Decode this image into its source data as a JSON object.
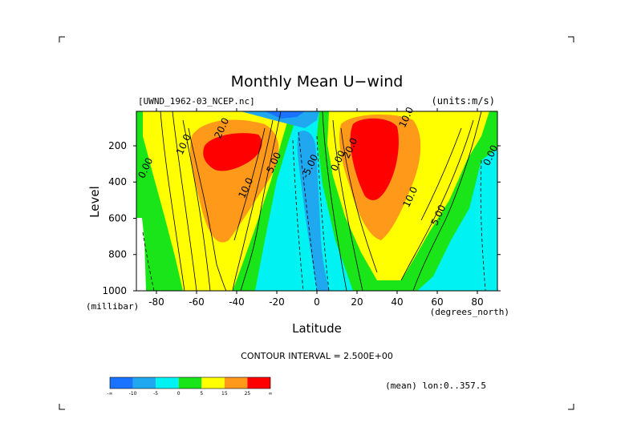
{
  "chart_data": {
    "type": "heatmap",
    "title": "Monthly Mean U−wind",
    "dataset_label": "[UWND_1962-03_NCEP.nc]",
    "units_label": "(units:m/s)",
    "xlabel": "Latitude",
    "ylabel": "Level",
    "x_unit_label": "(degrees_north)",
    "y_unit_label": "(millibar)",
    "x_range": [
      -90,
      90
    ],
    "y_range": [
      1000,
      10
    ],
    "x_ticks": [
      "-80",
      "-60",
      "-40",
      "-20",
      "0",
      "20",
      "40",
      "60",
      "80"
    ],
    "x_tick_values": [
      -80,
      -60,
      -40,
      -20,
      0,
      20,
      40,
      60,
      80
    ],
    "y_ticks": [
      "200",
      "400",
      "600",
      "800",
      "1000"
    ],
    "y_tick_values": [
      200,
      400,
      600,
      800,
      1000
    ],
    "contour_interval_text": "CONTOUR INTERVAL = 2.500E+00",
    "footer_text": "(mean) lon:0..357.5",
    "contour_labels": [
      {
        "text": "20.0",
        "lat": -46,
        "lev": 110
      },
      {
        "text": "10.0",
        "lat": -65,
        "lev": 200
      },
      {
        "text": "0.00",
        "lat": -84,
        "lev": 330
      },
      {
        "text": "10.0",
        "lat": -34,
        "lev": 440
      },
      {
        "text": "5.00",
        "lat": -20,
        "lev": 300
      },
      {
        "text": "-5.00",
        "lat": -2,
        "lev": 320
      },
      {
        "text": "0.00",
        "lat": 12,
        "lev": 290
      },
      {
        "text": "20.0",
        "lat": 18,
        "lev": 220
      },
      {
        "text": "10.0",
        "lat": 46,
        "lev": 50
      },
      {
        "text": "10.0",
        "lat": 48,
        "lev": 490
      },
      {
        "text": "5.00",
        "lat": 62,
        "lev": 590
      },
      {
        "text": "0.00",
        "lat": 88,
        "lev": 260
      }
    ],
    "colorbar": {
      "ticks": [
        "-∞",
        "-10",
        "-5",
        "0",
        "5",
        "15",
        "25",
        "∞"
      ],
      "colors": [
        "#1973ff",
        "#1fa8f0",
        "#00f2f2",
        "#19e519",
        "#ffff00",
        "#ff9919",
        "#ff0000"
      ],
      "boundaries": [
        -15,
        -10,
        -5,
        0,
        5,
        15,
        25,
        35
      ]
    }
  }
}
